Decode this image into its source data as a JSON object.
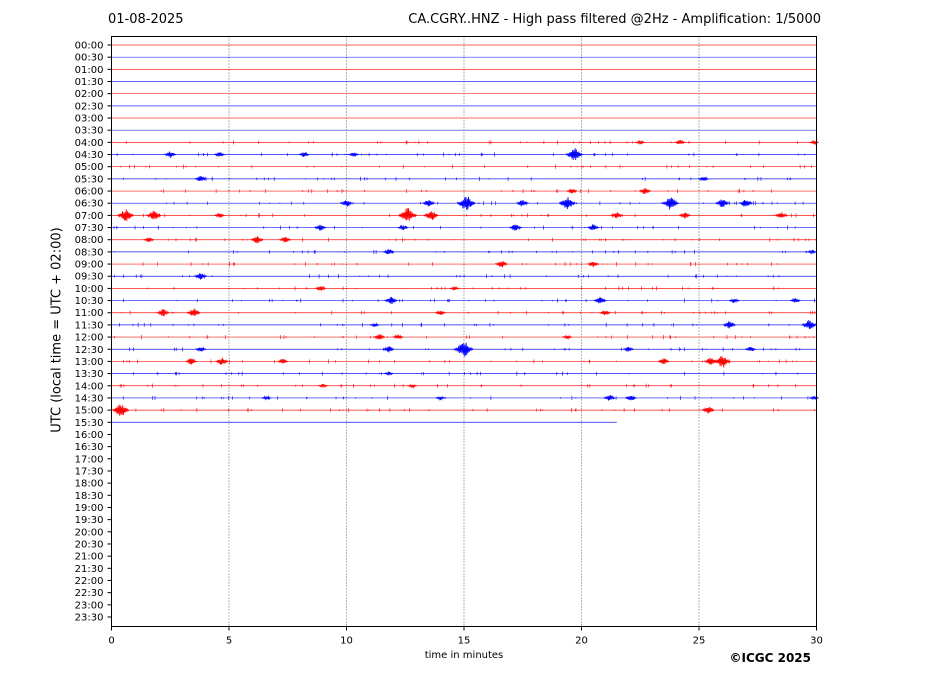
{
  "header": {
    "date": "01-08-2025",
    "title": "CA.CGRY..HNZ - High pass filtered @2Hz - Amplification: 1/5000"
  },
  "footer": {
    "copyright": "©ICGC 2025"
  },
  "chart_data": {
    "type": "line",
    "title": "CA.CGRY..HNZ - High pass filtered @2Hz - Amplification: 1/5000",
    "xlabel": "time in minutes",
    "ylabel": "UTC (local time = UTC + 02:00)",
    "xlim": [
      0,
      30
    ],
    "x_ticks": [
      0,
      5,
      10,
      15,
      20,
      25,
      30
    ],
    "y_ticks": [
      "00:00",
      "00:30",
      "01:00",
      "01:30",
      "02:00",
      "02:30",
      "03:00",
      "03:30",
      "04:00",
      "04:30",
      "05:00",
      "05:30",
      "06:00",
      "06:30",
      "07:00",
      "07:30",
      "08:00",
      "08:30",
      "09:00",
      "09:30",
      "10:00",
      "10:30",
      "11:00",
      "11:30",
      "12:00",
      "12:30",
      "13:00",
      "13:30",
      "14:00",
      "14:30",
      "15:00",
      "15:30",
      "16:00",
      "16:30",
      "17:00",
      "17:30",
      "18:00",
      "18:30",
      "19:00",
      "19:30",
      "20:00",
      "20:30",
      "21:00",
      "21:30",
      "22:00",
      "22:30",
      "23:00",
      "23:30"
    ],
    "grid": "vertical dotted lines at each 5-minute tick",
    "trace_colors": [
      "#ff0000",
      "#0000ff"
    ],
    "last_trace_end_minute": 21.5,
    "series": [
      {
        "values": []
      },
      {
        "values": []
      },
      {
        "values": []
      },
      {
        "values": []
      },
      {
        "values": []
      },
      {
        "values": []
      },
      {
        "values": []
      },
      {
        "values": []
      },
      {
        "values": [
          {
            "x": 22.5,
            "amp": 0.3
          },
          {
            "x": 24.2,
            "amp": 0.4
          },
          {
            "x": 29.9,
            "amp": 0.3
          }
        ]
      },
      {
        "values": [
          {
            "x": 2.5,
            "amp": 0.5
          },
          {
            "x": 4.6,
            "amp": 0.4
          },
          {
            "x": 8.2,
            "amp": 0.4
          },
          {
            "x": 10.3,
            "amp": 0.4
          },
          {
            "x": 19.7,
            "amp": 1.0
          }
        ]
      },
      {
        "values": []
      },
      {
        "values": [
          {
            "x": 3.8,
            "amp": 0.5
          },
          {
            "x": 25.2,
            "amp": 0.4
          }
        ]
      },
      {
        "values": [
          {
            "x": 19.6,
            "amp": 0.4
          },
          {
            "x": 22.7,
            "amp": 0.5
          }
        ]
      },
      {
        "values": [
          {
            "x": 10.0,
            "amp": 0.6
          },
          {
            "x": 13.5,
            "amp": 0.6
          },
          {
            "x": 15.1,
            "amp": 1.2
          },
          {
            "x": 17.5,
            "amp": 0.6
          },
          {
            "x": 19.4,
            "amp": 1.0
          },
          {
            "x": 23.8,
            "amp": 1.0
          },
          {
            "x": 26.0,
            "amp": 0.7
          },
          {
            "x": 27.0,
            "amp": 0.7
          }
        ]
      },
      {
        "values": [
          {
            "x": 0.6,
            "amp": 1.0
          },
          {
            "x": 1.8,
            "amp": 0.8
          },
          {
            "x": 4.6,
            "amp": 0.4
          },
          {
            "x": 12.6,
            "amp": 1.2
          },
          {
            "x": 13.6,
            "amp": 0.8
          },
          {
            "x": 21.5,
            "amp": 0.5
          },
          {
            "x": 24.4,
            "amp": 0.5
          },
          {
            "x": 28.5,
            "amp": 0.5
          }
        ]
      },
      {
        "values": [
          {
            "x": 8.9,
            "amp": 0.5
          },
          {
            "x": 12.4,
            "amp": 0.4
          },
          {
            "x": 17.2,
            "amp": 0.6
          },
          {
            "x": 20.5,
            "amp": 0.5
          }
        ]
      },
      {
        "values": [
          {
            "x": 1.6,
            "amp": 0.4
          },
          {
            "x": 6.2,
            "amp": 0.6
          },
          {
            "x": 7.4,
            "amp": 0.5
          }
        ]
      },
      {
        "values": [
          {
            "x": 11.8,
            "amp": 0.5
          },
          {
            "x": 29.8,
            "amp": 0.3
          }
        ]
      },
      {
        "values": [
          {
            "x": 16.6,
            "amp": 0.6
          },
          {
            "x": 20.5,
            "amp": 0.5
          }
        ]
      },
      {
        "values": [
          {
            "x": 3.8,
            "amp": 0.6
          }
        ]
      },
      {
        "values": [
          {
            "x": 8.9,
            "amp": 0.4
          },
          {
            "x": 14.6,
            "amp": 0.3
          }
        ]
      },
      {
        "values": [
          {
            "x": 11.9,
            "amp": 0.6
          },
          {
            "x": 20.8,
            "amp": 0.6
          },
          {
            "x": 26.5,
            "amp": 0.4
          },
          {
            "x": 29.1,
            "amp": 0.4
          }
        ]
      },
      {
        "values": [
          {
            "x": 2.2,
            "amp": 0.6
          },
          {
            "x": 3.5,
            "amp": 0.7
          },
          {
            "x": 14.0,
            "amp": 0.4
          },
          {
            "x": 21.0,
            "amp": 0.4
          }
        ]
      },
      {
        "values": [
          {
            "x": 11.2,
            "amp": 0.3
          },
          {
            "x": 26.3,
            "amp": 0.6
          },
          {
            "x": 29.7,
            "amp": 0.8
          }
        ]
      },
      {
        "values": [
          {
            "x": 11.4,
            "amp": 0.5
          },
          {
            "x": 12.2,
            "amp": 0.4
          },
          {
            "x": 19.4,
            "amp": 0.3
          }
        ]
      },
      {
        "values": [
          {
            "x": 3.8,
            "amp": 0.4
          },
          {
            "x": 11.8,
            "amp": 0.5
          },
          {
            "x": 15.0,
            "amp": 1.2
          },
          {
            "x": 22.0,
            "amp": 0.4
          },
          {
            "x": 27.2,
            "amp": 0.4
          }
        ]
      },
      {
        "values": [
          {
            "x": 3.4,
            "amp": 0.5
          },
          {
            "x": 4.7,
            "amp": 0.6
          },
          {
            "x": 7.3,
            "amp": 0.4
          },
          {
            "x": 23.5,
            "amp": 0.5
          },
          {
            "x": 25.5,
            "amp": 0.6
          },
          {
            "x": 26.0,
            "amp": 1.0
          }
        ]
      },
      {
        "values": [
          {
            "x": 11.8,
            "amp": 0.3
          }
        ]
      },
      {
        "values": [
          {
            "x": 9.0,
            "amp": 0.3
          },
          {
            "x": 12.8,
            "amp": 0.3
          }
        ]
      },
      {
        "values": [
          {
            "x": 6.6,
            "amp": 0.3
          },
          {
            "x": 14.0,
            "amp": 0.3
          },
          {
            "x": 21.2,
            "amp": 0.5
          },
          {
            "x": 22.1,
            "amp": 0.5
          },
          {
            "x": 29.9,
            "amp": 0.3
          }
        ]
      },
      {
        "values": [
          {
            "x": 0.4,
            "amp": 1.0
          },
          {
            "x": 25.4,
            "amp": 0.6
          }
        ]
      },
      {
        "values": []
      }
    ]
  }
}
